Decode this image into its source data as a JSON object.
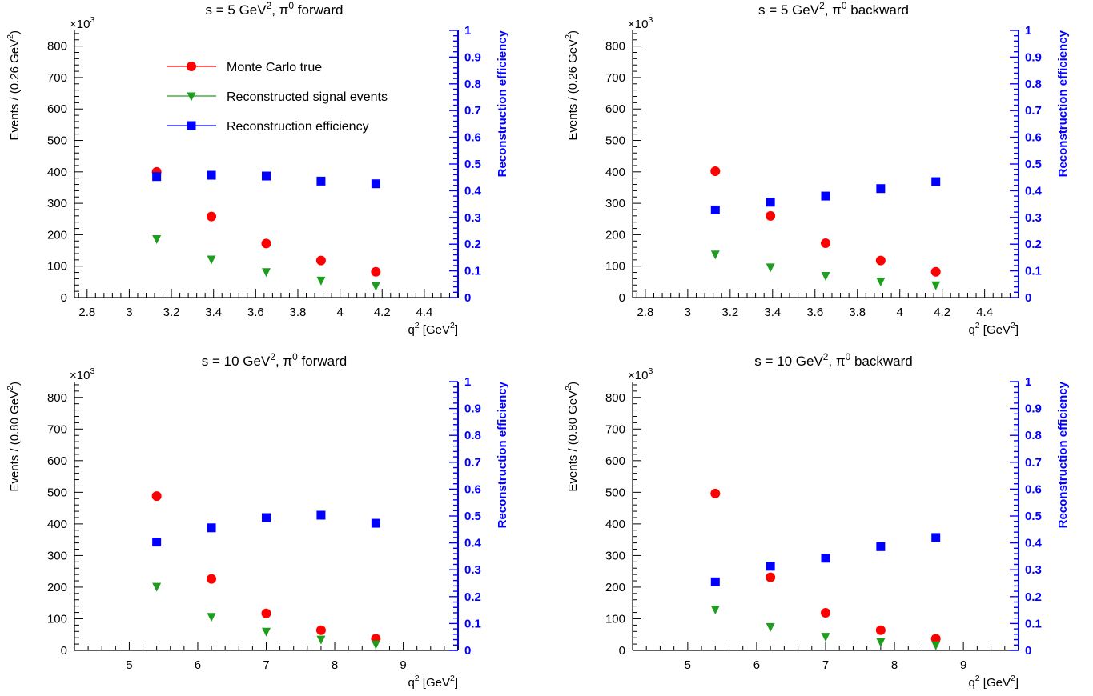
{
  "colors": {
    "mc": "#ff0000",
    "reco": "#1e9e1e",
    "eff": "#0000ff",
    "axis": "#000000"
  },
  "legend": [
    {
      "label": "Monte Carlo true",
      "marker": "circle",
      "color": "#ff0000"
    },
    {
      "label": "Reconstructed signal events",
      "marker": "triangle-down",
      "color": "#1e9e1e"
    },
    {
      "label": "Reconstruction efficiency",
      "marker": "square",
      "color": "#0000ff"
    }
  ],
  "chart_data": [
    {
      "type": "scatter",
      "title": {
        "main": "s = 5 GeV",
        "sup": "2",
        "mid": ", π",
        "sup2": "0",
        "end": " forward"
      },
      "xlabel": {
        "main": "q",
        "sup": "2",
        "mid": " [GeV",
        "sup2": "2",
        "end": "]"
      },
      "ylabel": {
        "main": "Events / (0.26 GeV",
        "sup": "2",
        "end": ")"
      },
      "y2label": "Reconstruction efficiency",
      "multiplier": {
        "main": "×10",
        "sup": "3"
      },
      "xlim": [
        2.74,
        4.56
      ],
      "xticks": [
        2.8,
        3,
        3.2,
        3.4,
        3.6,
        3.8,
        4,
        4.2,
        4.4
      ],
      "xtick_labels": [
        "2.8",
        "3",
        "3.2",
        "3.4",
        "3.6",
        "3.8",
        "4",
        "4.2",
        "4.4"
      ],
      "ylim": [
        0,
        850
      ],
      "yticks": [
        0,
        100,
        200,
        300,
        400,
        500,
        600,
        700,
        800
      ],
      "ytick_labels": [
        "0",
        "100",
        "200",
        "300",
        "400",
        "500",
        "600",
        "700",
        "800"
      ],
      "y2lim": [
        0,
        1
      ],
      "y2ticks": [
        0,
        0.1,
        0.2,
        0.3,
        0.4,
        0.5,
        0.6,
        0.7,
        0.8,
        0.9,
        1
      ],
      "y2tick_labels": [
        "0",
        "0.1",
        "0.2",
        "0.3",
        "0.4",
        "0.5",
        "0.6",
        "0.7",
        "0.8",
        "0.9",
        "1"
      ],
      "x": [
        3.13,
        3.39,
        3.65,
        3.91,
        4.17
      ],
      "series": [
        {
          "name": "Monte Carlo true",
          "axis": "left",
          "values": [
            400,
            258,
            172,
            118,
            82
          ]
        },
        {
          "name": "Reconstructed signal events",
          "axis": "left",
          "values": [
            187,
            122,
            82,
            55,
            38
          ]
        },
        {
          "name": "Reconstruction efficiency",
          "axis": "right",
          "values": [
            0.453,
            0.458,
            0.455,
            0.436,
            0.426
          ]
        }
      ],
      "show_legend": true
    },
    {
      "type": "scatter",
      "title": {
        "main": "s = 5 GeV",
        "sup": "2",
        "mid": ", π",
        "sup2": "0",
        "end": " backward"
      },
      "xlabel": {
        "main": "q",
        "sup": "2",
        "mid": " [GeV",
        "sup2": "2",
        "end": "]"
      },
      "ylabel": {
        "main": "Events / (0.26 GeV",
        "sup": "2",
        "end": ")"
      },
      "y2label": "Reconstruction efficiency",
      "multiplier": {
        "main": "×10",
        "sup": "3"
      },
      "xlim": [
        2.74,
        4.56
      ],
      "xticks": [
        2.8,
        3,
        3.2,
        3.4,
        3.6,
        3.8,
        4,
        4.2,
        4.4
      ],
      "xtick_labels": [
        "2.8",
        "3",
        "3.2",
        "3.4",
        "3.6",
        "3.8",
        "4",
        "4.2",
        "4.4"
      ],
      "ylim": [
        0,
        850
      ],
      "yticks": [
        0,
        100,
        200,
        300,
        400,
        500,
        600,
        700,
        800
      ],
      "ytick_labels": [
        "0",
        "100",
        "200",
        "300",
        "400",
        "500",
        "600",
        "700",
        "800"
      ],
      "y2lim": [
        0,
        1
      ],
      "y2ticks": [
        0,
        0.1,
        0.2,
        0.3,
        0.4,
        0.5,
        0.6,
        0.7,
        0.8,
        0.9,
        1
      ],
      "y2tick_labels": [
        "0",
        "0.1",
        "0.2",
        "0.3",
        "0.4",
        "0.5",
        "0.6",
        "0.7",
        "0.8",
        "0.9",
        "1"
      ],
      "x": [
        3.13,
        3.39,
        3.65,
        3.91,
        4.17
      ],
      "series": [
        {
          "name": "Monte Carlo true",
          "axis": "left",
          "values": [
            402,
            260,
            173,
            118,
            82
          ]
        },
        {
          "name": "Reconstructed signal events",
          "axis": "left",
          "values": [
            138,
            97,
            70,
            52,
            40
          ]
        },
        {
          "name": "Reconstruction efficiency",
          "axis": "right",
          "values": [
            0.328,
            0.357,
            0.38,
            0.408,
            0.434
          ]
        }
      ],
      "show_legend": false
    },
    {
      "type": "scatter",
      "title": {
        "main": "s = 10 GeV",
        "sup": "2",
        "mid": ", π",
        "sup2": "0",
        "end": " forward"
      },
      "xlabel": {
        "main": "q",
        "sup": "2",
        "mid": " [GeV",
        "sup2": "2",
        "end": "]"
      },
      "ylabel": {
        "main": "Events / (0.80 GeV",
        "sup": "2",
        "end": ")"
      },
      "y2label": "Reconstruction efficiency",
      "multiplier": {
        "main": "×10",
        "sup": "3"
      },
      "xlim": [
        4.2,
        9.8
      ],
      "xticks": [
        5,
        6,
        7,
        8,
        9
      ],
      "xtick_labels": [
        "5",
        "6",
        "7",
        "8",
        "9"
      ],
      "ylim": [
        0,
        850
      ],
      "yticks": [
        0,
        100,
        200,
        300,
        400,
        500,
        600,
        700,
        800
      ],
      "ytick_labels": [
        "0",
        "100",
        "200",
        "300",
        "400",
        "500",
        "600",
        "700",
        "800"
      ],
      "y2lim": [
        0,
        1
      ],
      "y2ticks": [
        0,
        0.1,
        0.2,
        0.3,
        0.4,
        0.5,
        0.6,
        0.7,
        0.8,
        0.9,
        1
      ],
      "y2tick_labels": [
        "0",
        "0.1",
        "0.2",
        "0.3",
        "0.4",
        "0.5",
        "0.6",
        "0.7",
        "0.8",
        "0.9",
        "1"
      ],
      "x": [
        5.4,
        6.2,
        7.0,
        7.8,
        8.6
      ],
      "series": [
        {
          "name": "Monte Carlo true",
          "axis": "left",
          "values": [
            488,
            226,
            117,
            64,
            37
          ]
        },
        {
          "name": "Reconstructed signal events",
          "axis": "left",
          "values": [
            202,
            107,
            60,
            35,
            20
          ]
        },
        {
          "name": "Reconstruction efficiency",
          "axis": "right",
          "values": [
            0.403,
            0.456,
            0.494,
            0.503,
            0.473
          ]
        }
      ],
      "show_legend": false
    },
    {
      "type": "scatter",
      "title": {
        "main": "s = 10 GeV",
        "sup": "2",
        "mid": ", π",
        "sup2": "0",
        "end": " backward"
      },
      "xlabel": {
        "main": "q",
        "sup": "2",
        "mid": " [GeV",
        "sup2": "2",
        "end": "]"
      },
      "ylabel": {
        "main": "Events / (0.80 GeV",
        "sup": "2",
        "end": ")"
      },
      "y2label": "Reconstruction efficiency",
      "multiplier": {
        "main": "×10",
        "sup": "3"
      },
      "xlim": [
        4.2,
        9.8
      ],
      "xticks": [
        5,
        6,
        7,
        8,
        9
      ],
      "xtick_labels": [
        "5",
        "6",
        "7",
        "8",
        "9"
      ],
      "ylim": [
        0,
        850
      ],
      "yticks": [
        0,
        100,
        200,
        300,
        400,
        500,
        600,
        700,
        800
      ],
      "ytick_labels": [
        "0",
        "100",
        "200",
        "300",
        "400",
        "500",
        "600",
        "700",
        "800"
      ],
      "y2lim": [
        0,
        1
      ],
      "y2ticks": [
        0,
        0.1,
        0.2,
        0.3,
        0.4,
        0.5,
        0.6,
        0.7,
        0.8,
        0.9,
        1
      ],
      "y2tick_labels": [
        "0",
        "0.1",
        "0.2",
        "0.3",
        "0.4",
        "0.5",
        "0.6",
        "0.7",
        "0.8",
        "0.9",
        "1"
      ],
      "x": [
        5.4,
        6.2,
        7.0,
        7.8,
        8.6
      ],
      "series": [
        {
          "name": "Monte Carlo true",
          "axis": "left",
          "values": [
            496,
            231,
            119,
            64,
            37
          ]
        },
        {
          "name": "Reconstructed signal events",
          "axis": "left",
          "values": [
            130,
            75,
            44,
            27,
            17
          ]
        },
        {
          "name": "Reconstruction efficiency",
          "axis": "right",
          "values": [
            0.255,
            0.313,
            0.343,
            0.386,
            0.42
          ]
        }
      ],
      "show_legend": false
    }
  ]
}
